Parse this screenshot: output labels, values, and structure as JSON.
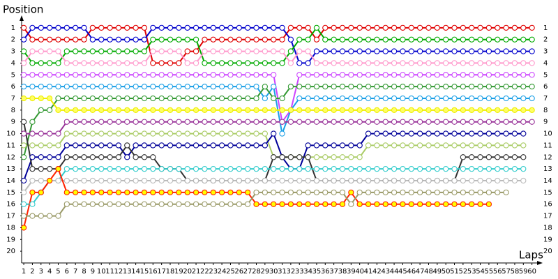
{
  "chart_data": {
    "type": "lap-line",
    "y_label": "Position",
    "x_label": "Laps",
    "x": [
      1,
      2,
      3,
      4,
      5,
      6,
      7,
      8,
      9,
      10,
      11,
      12,
      13,
      14,
      15,
      16,
      17,
      18,
      19,
      20,
      21,
      22,
      23,
      24,
      25,
      26,
      27,
      28,
      29,
      30,
      31,
      32,
      33,
      34,
      35,
      36,
      37,
      38,
      39,
      40,
      41,
      42,
      43,
      44,
      45,
      46,
      47,
      48,
      49,
      50,
      51,
      52,
      53,
      54,
      55,
      56,
      57,
      58,
      59,
      60
    ],
    "xlim": [
      0.75,
      61
    ],
    "ylim": [
      0,
      21
    ],
    "y_reversed": true,
    "yticks": [
      1,
      2,
      3,
      4,
      5,
      6,
      7,
      8,
      9,
      10,
      11,
      12,
      13,
      14,
      15,
      16,
      17,
      18,
      19,
      20
    ],
    "grid": false,
    "series": [
      {
        "color": "#e00000",
        "marker_color": "#ffffff",
        "values": [
          1,
          2,
          2,
          2,
          2,
          2,
          2,
          2,
          1,
          1,
          1,
          1,
          1,
          1,
          1,
          4,
          4,
          4,
          4,
          3,
          3,
          2,
          2,
          2,
          2,
          2,
          2,
          2,
          2,
          2,
          2,
          1,
          1,
          1,
          2,
          1,
          1,
          1,
          1,
          1,
          1,
          1,
          1,
          1,
          1,
          1,
          1,
          1,
          1,
          1,
          1,
          1,
          1,
          1,
          1,
          1,
          1,
          1,
          1,
          1
        ]
      },
      {
        "color": "#0000cc",
        "marker_color": "#ffffff",
        "values": [
          2,
          1,
          1,
          1,
          1,
          1,
          1,
          1,
          2,
          2,
          2,
          2,
          2,
          2,
          2,
          1,
          1,
          1,
          1,
          1,
          1,
          1,
          1,
          1,
          1,
          1,
          1,
          1,
          1,
          1,
          1,
          2,
          4,
          4,
          3,
          3,
          3,
          3,
          3,
          3,
          3,
          3,
          3,
          3,
          3,
          3,
          3,
          3,
          3,
          3,
          3,
          3,
          3,
          3,
          3,
          3,
          3,
          3,
          3,
          3
        ]
      },
      {
        "color": "#00aa00",
        "marker_color": "#ffffff",
        "values": [
          3,
          4,
          4,
          4,
          4,
          3,
          3,
          3,
          3,
          3,
          3,
          3,
          3,
          3,
          3,
          2,
          2,
          2,
          2,
          2,
          2,
          4,
          4,
          4,
          4,
          4,
          4,
          4,
          4,
          4,
          4,
          3,
          2,
          2,
          1,
          2,
          2,
          2,
          2,
          2,
          2,
          2,
          2,
          2,
          2,
          2,
          2,
          2,
          2,
          2,
          2,
          2,
          2,
          2,
          2,
          2,
          2,
          2,
          2,
          2
        ]
      },
      {
        "color": "#ff99cc",
        "marker_color": "#ffffff",
        "values": [
          4,
          3,
          3,
          3,
          3,
          4,
          4,
          4,
          4,
          4,
          4,
          4,
          4,
          4,
          4,
          3,
          3,
          3,
          3,
          4,
          4,
          3,
          3,
          3,
          3,
          3,
          3,
          3,
          3,
          3,
          3,
          4,
          3,
          3,
          4,
          4,
          4,
          4,
          4,
          4,
          4,
          4,
          4,
          4,
          4,
          4,
          4,
          4,
          4,
          4,
          4,
          4,
          4,
          4,
          4,
          4,
          4,
          4,
          4,
          4
        ]
      },
      {
        "color": "#cc44ff",
        "marker_color": "#ffffff",
        "values": [
          5,
          5,
          5,
          5,
          5,
          5,
          5,
          5,
          5,
          5,
          5,
          5,
          5,
          5,
          5,
          5,
          5,
          5,
          5,
          5,
          5,
          5,
          5,
          5,
          5,
          5,
          5,
          5,
          5,
          5,
          9,
          8,
          5,
          5,
          5,
          5,
          5,
          5,
          5,
          5,
          5,
          5,
          5,
          5,
          5,
          5,
          5,
          5,
          5,
          5,
          5,
          5,
          5,
          5,
          5,
          5,
          5,
          5,
          5,
          5
        ]
      },
      {
        "color": "#1a9fe6",
        "marker_color": "#ffffff",
        "values": [
          6,
          6,
          6,
          6,
          6,
          6,
          6,
          6,
          6,
          6,
          6,
          6,
          6,
          6,
          6,
          6,
          6,
          6,
          6,
          6,
          6,
          6,
          6,
          6,
          6,
          6,
          6,
          6,
          7,
          6,
          10,
          8,
          7,
          7,
          7,
          7,
          7,
          7,
          7,
          7,
          7,
          7,
          7,
          7,
          7,
          7,
          7,
          7,
          7,
          7,
          7,
          7,
          7,
          7,
          7,
          7,
          7,
          7,
          7,
          7
        ]
      },
      {
        "color": "#339933",
        "marker_color": "#ffffff",
        "values": [
          12,
          9,
          8,
          8,
          7,
          7,
          7,
          7,
          7,
          7,
          7,
          7,
          7,
          7,
          7,
          7,
          7,
          7,
          7,
          7,
          7,
          7,
          7,
          7,
          7,
          7,
          7,
          7,
          6,
          7,
          7,
          6,
          6,
          6,
          6,
          6,
          6,
          6,
          6,
          6,
          6,
          6,
          6,
          6,
          6,
          6,
          6,
          6,
          6,
          6,
          6,
          6,
          6,
          6,
          6,
          6,
          6,
          6,
          6,
          6
        ]
      },
      {
        "color": "#eeee00",
        "marker_color": "#ffff66",
        "values": [
          7,
          7,
          7,
          7,
          8,
          8,
          8,
          8,
          8,
          8,
          8,
          8,
          8,
          8,
          8,
          8,
          8,
          8,
          8,
          8,
          8,
          8,
          8,
          8,
          8,
          8,
          8,
          8,
          8,
          8,
          8,
          8,
          8,
          8,
          8,
          8,
          8,
          8,
          8,
          8,
          8,
          8,
          8,
          8,
          8,
          8,
          8,
          8,
          8,
          8,
          8,
          8,
          8,
          8,
          8,
          8,
          8,
          8,
          8,
          8
        ]
      },
      {
        "color": "#993399",
        "marker_color": "#ffffff",
        "values": [
          10,
          10,
          10,
          10,
          10,
          9,
          9,
          9,
          9,
          9,
          9,
          9,
          9,
          9,
          9,
          9,
          9,
          9,
          9,
          9,
          9,
          9,
          9,
          9,
          9,
          9,
          9,
          9,
          9,
          9,
          9,
          9,
          9,
          9,
          9,
          9,
          9,
          9,
          9,
          9,
          9,
          9,
          9,
          9,
          9,
          9,
          9,
          9,
          9,
          9,
          9,
          9,
          9,
          9,
          9,
          9,
          9,
          9,
          9,
          9
        ]
      },
      {
        "color": "#aacc66",
        "marker_color": "#ffffff",
        "values": [
          11,
          11,
          11,
          11,
          11,
          10,
          10,
          10,
          10,
          10,
          10,
          10,
          10,
          10,
          10,
          10,
          10,
          10,
          10,
          10,
          10,
          10,
          10,
          10,
          10,
          10,
          10,
          10,
          10,
          12,
          12,
          12,
          12,
          12,
          12,
          12,
          12,
          12,
          12,
          12,
          11,
          11,
          11,
          11,
          11,
          11,
          11,
          11,
          11,
          11,
          11,
          11,
          11,
          11,
          11,
          11,
          11,
          11,
          11,
          null
        ]
      },
      {
        "color": "#000099",
        "marker_color": "#ffffff",
        "values": [
          14,
          12,
          12,
          12,
          12,
          11,
          11,
          11,
          11,
          11,
          11,
          11,
          12,
          11,
          11,
          11,
          11,
          11,
          11,
          11,
          11,
          11,
          11,
          11,
          11,
          11,
          11,
          11,
          11,
          10,
          12,
          13,
          13,
          11,
          11,
          11,
          11,
          11,
          11,
          11,
          10,
          10,
          10,
          10,
          10,
          10,
          10,
          10,
          10,
          10,
          10,
          10,
          10,
          10,
          10,
          10,
          10,
          10,
          10,
          null
        ]
      },
      {
        "color": "#333333",
        "marker_color": "#ffffff",
        "values": [
          9,
          13,
          13,
          13,
          13,
          12,
          12,
          12,
          12,
          12,
          12,
          12,
          11,
          12,
          12,
          12,
          13,
          13,
          13,
          14,
          14,
          14,
          14,
          14,
          14,
          14,
          14,
          14,
          14,
          12,
          12,
          12,
          12,
          12,
          14,
          14,
          14,
          14,
          14,
          14,
          14,
          14,
          14,
          14,
          14,
          14,
          14,
          14,
          14,
          14,
          14,
          12,
          12,
          12,
          12,
          12,
          12,
          12,
          12,
          null
        ]
      },
      {
        "color": "#33cccc",
        "marker_color": "#ffffff",
        "values": [
          16,
          16,
          15,
          14,
          14,
          13,
          13,
          13,
          13,
          13,
          13,
          13,
          13,
          13,
          13,
          13,
          13,
          13,
          13,
          13,
          13,
          13,
          13,
          13,
          13,
          13,
          13,
          13,
          13,
          13,
          13,
          13,
          13,
          13,
          13,
          13,
          13,
          13,
          13,
          13,
          13,
          13,
          13,
          13,
          13,
          13,
          13,
          13,
          13,
          13,
          13,
          13,
          13,
          13,
          13,
          13,
          13,
          13,
          13,
          null
        ]
      },
      {
        "color": "#bbbbbb",
        "marker_color": "#ffffff",
        "values": [
          15,
          14,
          14,
          14,
          14,
          14,
          14,
          14,
          14,
          14,
          14,
          14,
          14,
          14,
          14,
          14,
          14,
          14,
          14,
          14,
          14,
          14,
          14,
          14,
          14,
          14,
          14,
          14,
          14,
          14,
          14,
          14,
          14,
          14,
          14,
          14,
          14,
          14,
          14,
          14,
          14,
          14,
          14,
          14,
          14,
          14,
          14,
          14,
          14,
          14,
          14,
          14,
          14,
          14,
          14,
          14,
          14,
          14,
          14,
          null
        ]
      },
      {
        "color": "#ff2200",
        "marker_color": "#ffff00",
        "values": [
          18,
          15,
          15,
          14,
          13,
          15,
          15,
          15,
          15,
          15,
          15,
          15,
          15,
          15,
          15,
          15,
          15,
          15,
          15,
          15,
          15,
          15,
          15,
          15,
          15,
          15,
          15,
          16,
          16,
          16,
          16,
          16,
          16,
          16,
          16,
          16,
          16,
          16,
          15,
          16,
          16,
          16,
          16,
          16,
          16,
          16,
          16,
          16,
          16,
          16,
          16,
          16,
          16,
          16,
          16,
          null,
          null,
          null,
          null,
          null
        ]
      },
      {
        "color": "#999966",
        "marker_color": "#ffffff",
        "values": [
          17,
          17,
          17,
          17,
          17,
          16,
          16,
          16,
          16,
          16,
          16,
          16,
          16,
          16,
          16,
          16,
          16,
          16,
          16,
          16,
          16,
          16,
          16,
          16,
          16,
          16,
          16,
          15,
          15,
          15,
          15,
          15,
          15,
          15,
          15,
          15,
          15,
          15,
          16,
          15,
          15,
          15,
          15,
          15,
          15,
          15,
          15,
          15,
          15,
          15,
          15,
          15,
          15,
          15,
          15,
          15,
          15,
          null,
          null,
          null
        ]
      }
    ]
  }
}
